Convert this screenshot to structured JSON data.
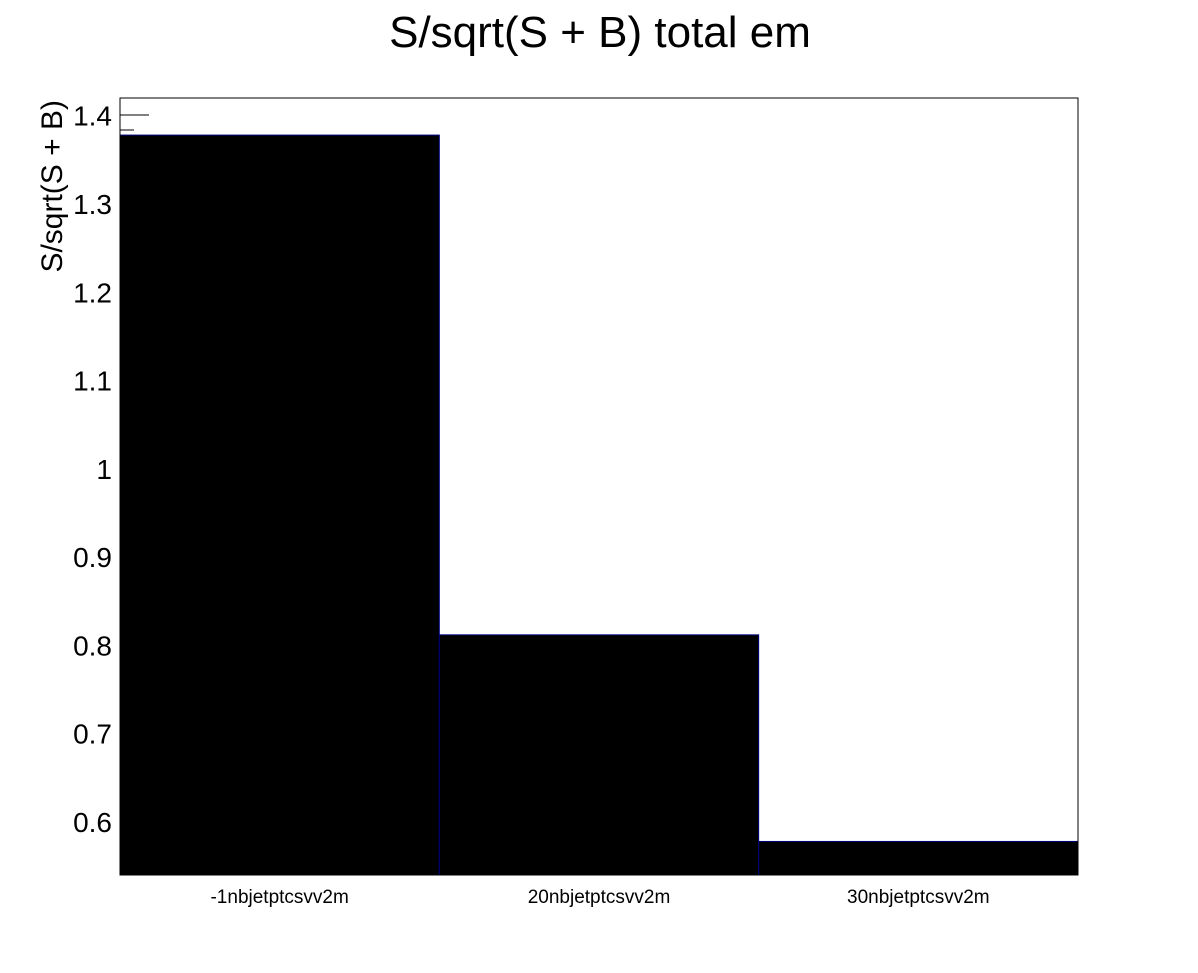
{
  "chart_data": {
    "type": "bar",
    "title": "S/sqrt(S + B) total    em",
    "xlabel": "",
    "ylabel": "S/sqrt(S + B)",
    "categories": [
      "-1nbjetptcsvv2m",
      "20nbjetptcsvv2m",
      "30nbjetptcsvv2m"
    ],
    "values": [
      1.378,
      0.812,
      0.578
    ],
    "ylim": [
      0.54,
      1.42
    ],
    "yticks": [
      "0.6",
      "0.7",
      "0.8",
      "0.9",
      "1",
      "1.1",
      "1.2",
      "1.3",
      "1.4"
    ],
    "bar_color": "#000000",
    "bar_edge_color": "#000080",
    "grid": false,
    "legend": "none"
  }
}
